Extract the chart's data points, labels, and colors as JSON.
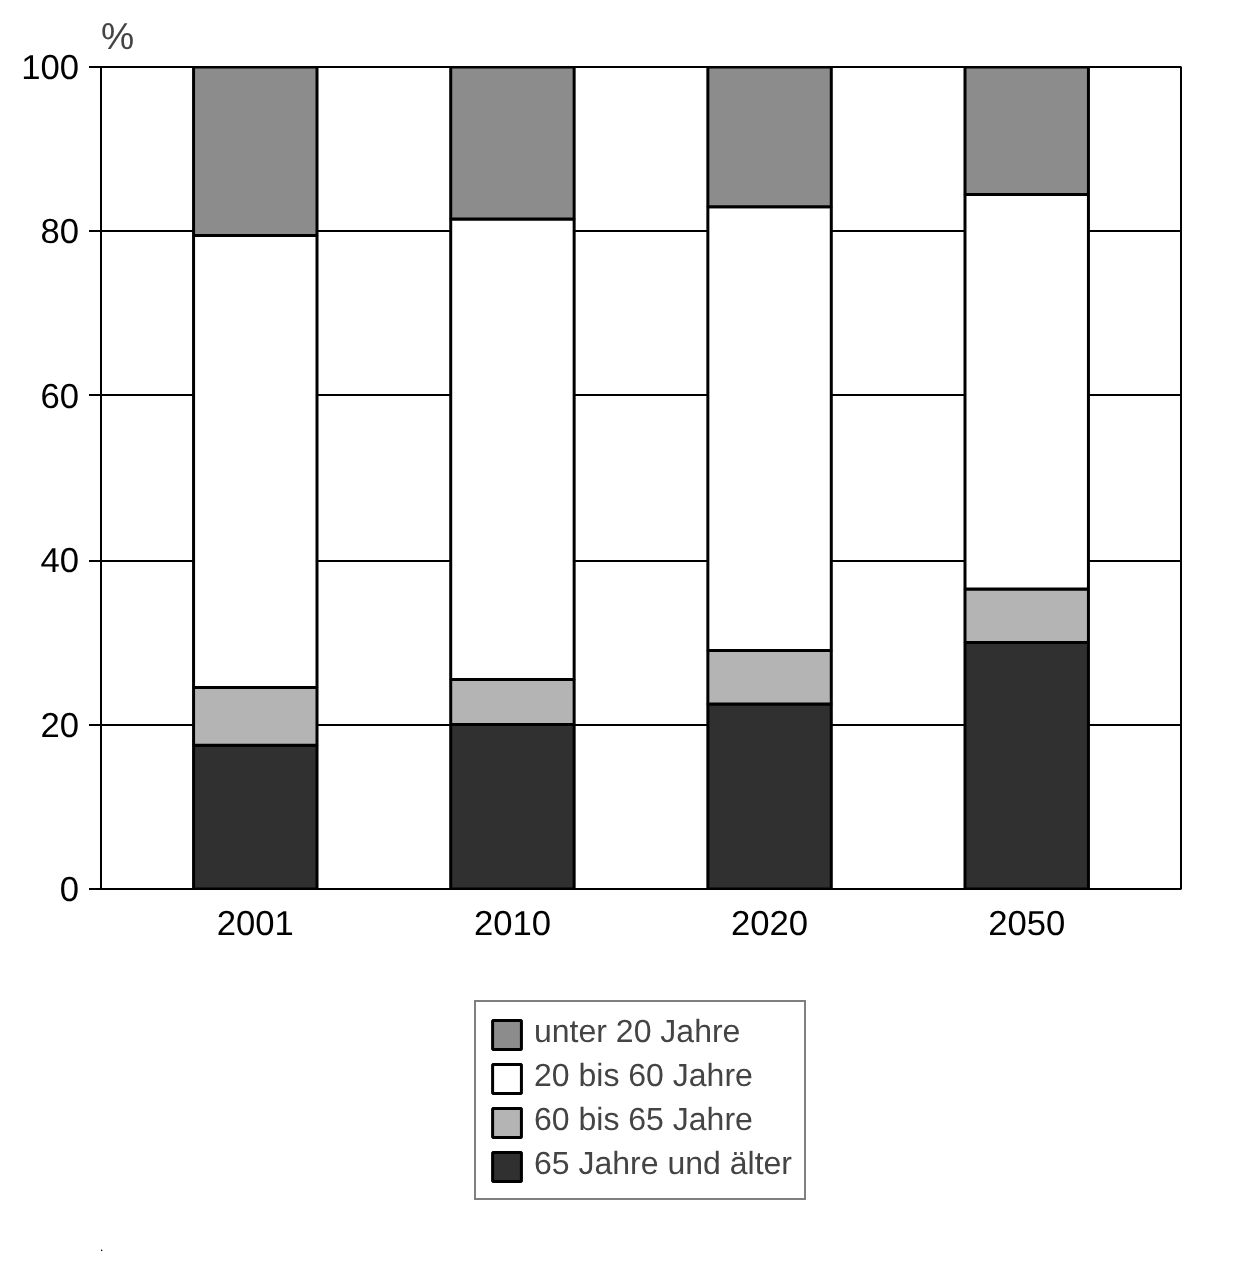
{
  "chart_data": {
    "type": "bar",
    "stacked": true,
    "ylabel": "%",
    "categories": [
      "2001",
      "2010",
      "2020",
      "2050"
    ],
    "series": [
      {
        "name": "65 Jahre und älter",
        "color": "#303030",
        "values": [
          17.5,
          20,
          22.5,
          30
        ]
      },
      {
        "name": "60 bis 65 Jahre",
        "color": "#b4b4b4",
        "values": [
          7,
          5.5,
          6.5,
          6.5
        ]
      },
      {
        "name": "20 bis 60 Jahre",
        "color": "#ffffff",
        "values": [
          55,
          56,
          54,
          48
        ]
      },
      {
        "name": "unter 20 Jahre",
        "color": "#8c8c8c",
        "values": [
          20.5,
          18.5,
          17,
          15.5
        ]
      }
    ],
    "ylim": [
      0,
      100
    ],
    "yticks": [
      0,
      20,
      40,
      60,
      80,
      100
    ],
    "grid": "y",
    "legend": "bottom"
  }
}
